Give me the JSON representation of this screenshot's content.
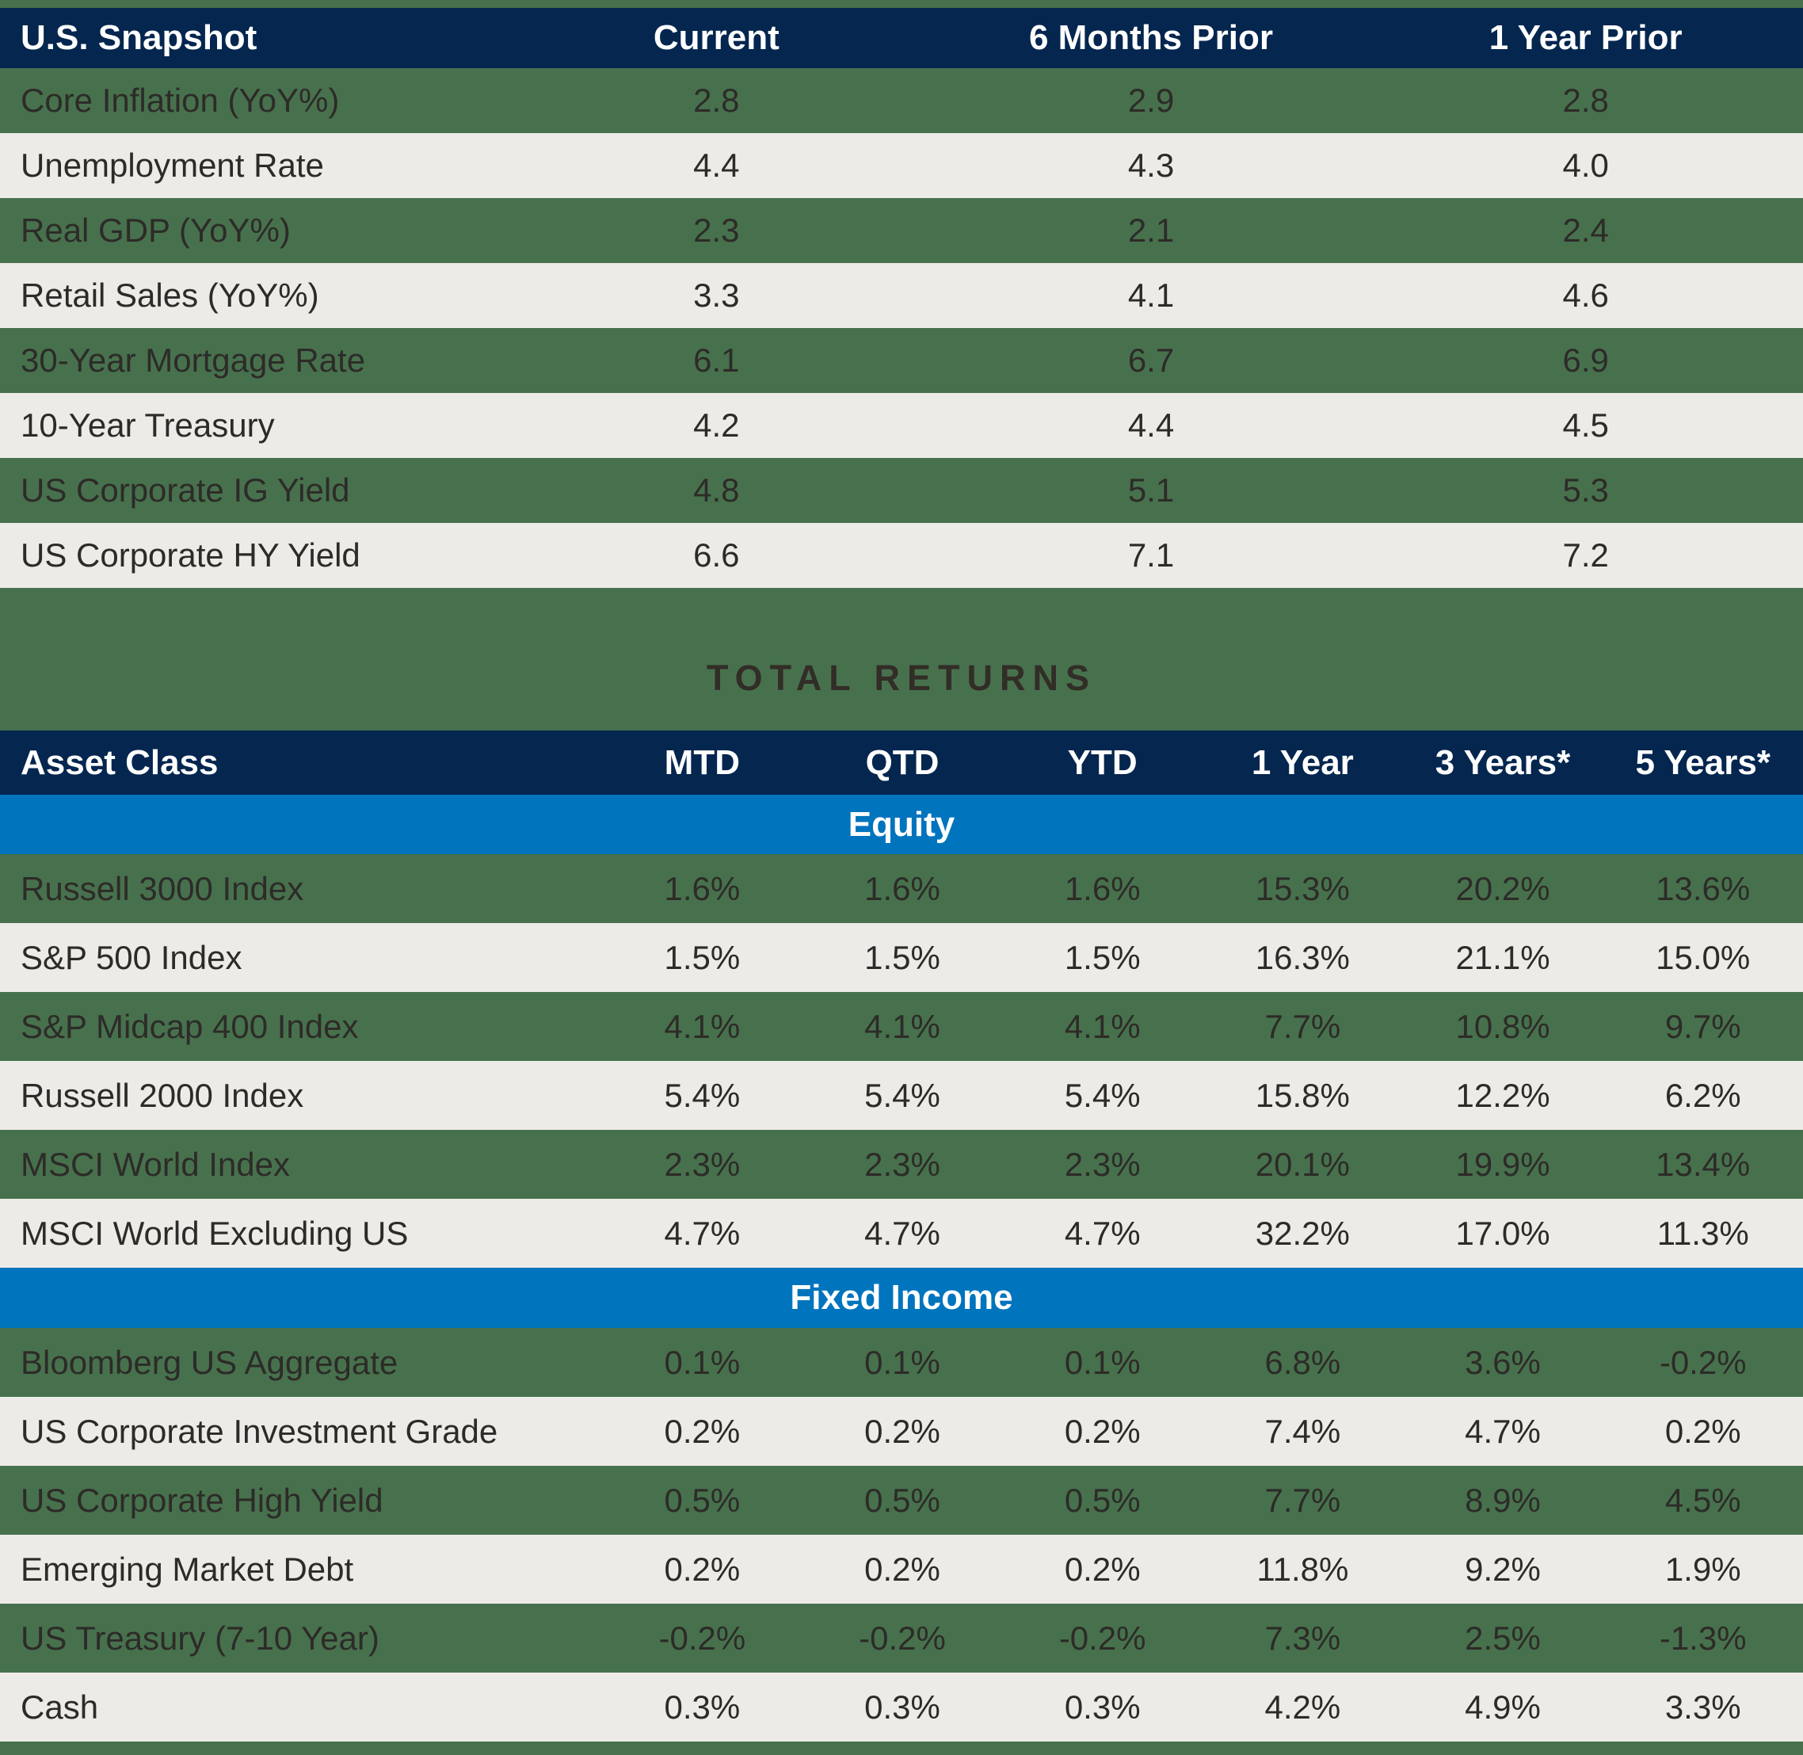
{
  "colors": {
    "navy": "#04264f",
    "green": "#47714d",
    "gray_row": "#edebe8",
    "blue_band": "#0074bd",
    "header_text": "#ffffff",
    "body_text": "#2d2b28",
    "title_text": "#322d27"
  },
  "snapshot": {
    "header": [
      "U.S. Snapshot",
      "Current",
      "6 Months Prior",
      "1 Year Prior"
    ],
    "rows": [
      {
        "label": "Core Inflation (YoY%)",
        "values": [
          "2.8",
          "2.9",
          "2.8"
        ]
      },
      {
        "label": "Unemployment Rate",
        "values": [
          "4.4",
          "4.3",
          "4.0"
        ]
      },
      {
        "label": "Real GDP (YoY%)",
        "values": [
          "2.3",
          "2.1",
          "2.4"
        ]
      },
      {
        "label": "Retail Sales (YoY%)",
        "values": [
          "3.3",
          "4.1",
          "4.6"
        ]
      },
      {
        "label": "30-Year Mortgage Rate",
        "values": [
          "6.1",
          "6.7",
          "6.9"
        ]
      },
      {
        "label": "10-Year Treasury",
        "values": [
          "4.2",
          "4.4",
          "4.5"
        ]
      },
      {
        "label": "US Corporate IG Yield",
        "values": [
          "4.8",
          "5.1",
          "5.3"
        ]
      },
      {
        "label": "US Corporate HY Yield",
        "values": [
          "6.6",
          "7.1",
          "7.2"
        ]
      }
    ]
  },
  "returns": {
    "title": "TOTAL RETURNS",
    "header": [
      "Asset Class",
      "MTD",
      "QTD",
      "YTD",
      "1 Year",
      "3 Years*",
      "5 Years*"
    ],
    "sections": [
      {
        "name": "Equity",
        "rows": [
          {
            "label": "Russell 3000 Index",
            "values": [
              "1.6%",
              "1.6%",
              "1.6%",
              "15.3%",
              "20.2%",
              "13.6%"
            ]
          },
          {
            "label": "S&P 500 Index",
            "values": [
              "1.5%",
              "1.5%",
              "1.5%",
              "16.3%",
              "21.1%",
              "15.0%"
            ]
          },
          {
            "label": "S&P Midcap 400 Index",
            "values": [
              "4.1%",
              "4.1%",
              "4.1%",
              "7.7%",
              "10.8%",
              "9.7%"
            ]
          },
          {
            "label": "Russell 2000 Index",
            "values": [
              "5.4%",
              "5.4%",
              "5.4%",
              "15.8%",
              "12.2%",
              "6.2%"
            ]
          },
          {
            "label": "MSCI World Index",
            "values": [
              "2.3%",
              "2.3%",
              "2.3%",
              "20.1%",
              "19.9%",
              "13.4%"
            ]
          },
          {
            "label": "MSCI World Excluding US",
            "values": [
              "4.7%",
              "4.7%",
              "4.7%",
              "32.2%",
              "17.0%",
              "11.3%"
            ]
          }
        ]
      },
      {
        "name": "Fixed Income",
        "rows": [
          {
            "label": "Bloomberg US Aggregate",
            "values": [
              "0.1%",
              "0.1%",
              "0.1%",
              "6.8%",
              "3.6%",
              "-0.2%"
            ]
          },
          {
            "label": "US Corporate Investment Grade",
            "values": [
              "0.2%",
              "0.2%",
              "0.2%",
              "7.4%",
              "4.7%",
              "0.2%"
            ]
          },
          {
            "label": "US Corporate High Yield",
            "values": [
              "0.5%",
              "0.5%",
              "0.5%",
              "7.7%",
              "8.9%",
              "4.5%"
            ]
          },
          {
            "label": "Emerging Market Debt",
            "values": [
              "0.2%",
              "0.2%",
              "0.2%",
              "11.8%",
              "9.2%",
              "1.9%"
            ]
          },
          {
            "label": "US Treasury (7-10 Year)",
            "values": [
              "-0.2%",
              "-0.2%",
              "-0.2%",
              "7.3%",
              "2.5%",
              "-1.3%"
            ]
          },
          {
            "label": "Cash",
            "values": [
              "0.3%",
              "0.3%",
              "0.3%",
              "4.2%",
              "4.9%",
              "3.3%"
            ]
          }
        ]
      }
    ]
  },
  "chart_data": [
    {
      "type": "table",
      "title": "U.S. Snapshot",
      "columns": [
        "U.S. Snapshot",
        "Current",
        "6 Months Prior",
        "1 Year Prior"
      ],
      "rows": [
        [
          "Core Inflation (YoY%)",
          2.8,
          2.9,
          2.8
        ],
        [
          "Unemployment Rate",
          4.4,
          4.3,
          4.0
        ],
        [
          "Real GDP (YoY%)",
          2.3,
          2.1,
          2.4
        ],
        [
          "Retail Sales (YoY%)",
          3.3,
          4.1,
          4.6
        ],
        [
          "30-Year Mortgage Rate",
          6.1,
          6.7,
          6.9
        ],
        [
          "10-Year Treasury",
          4.2,
          4.4,
          4.5
        ],
        [
          "US Corporate IG Yield",
          4.8,
          5.1,
          5.3
        ],
        [
          "US Corporate HY Yield",
          6.6,
          7.1,
          7.2
        ]
      ]
    },
    {
      "type": "table",
      "title": "TOTAL RETURNS",
      "columns": [
        "Asset Class",
        "MTD %",
        "QTD %",
        "YTD %",
        "1 Year %",
        "3 Years* %",
        "5 Years* %"
      ],
      "group_labels": [
        "Equity",
        "Fixed Income"
      ],
      "rows": [
        [
          "Russell 3000 Index",
          1.6,
          1.6,
          1.6,
          15.3,
          20.2,
          13.6
        ],
        [
          "S&P 500 Index",
          1.5,
          1.5,
          1.5,
          16.3,
          21.1,
          15.0
        ],
        [
          "S&P Midcap 400 Index",
          4.1,
          4.1,
          4.1,
          7.7,
          10.8,
          9.7
        ],
        [
          "Russell 2000 Index",
          5.4,
          5.4,
          5.4,
          15.8,
          12.2,
          6.2
        ],
        [
          "MSCI World Index",
          2.3,
          2.3,
          2.3,
          20.1,
          19.9,
          13.4
        ],
        [
          "MSCI World Excluding US",
          4.7,
          4.7,
          4.7,
          32.2,
          17.0,
          11.3
        ],
        [
          "Bloomberg US Aggregate",
          0.1,
          0.1,
          0.1,
          6.8,
          3.6,
          -0.2
        ],
        [
          "US Corporate Investment Grade",
          0.2,
          0.2,
          0.2,
          7.4,
          4.7,
          0.2
        ],
        [
          "US Corporate High Yield",
          0.5,
          0.5,
          0.5,
          7.7,
          8.9,
          4.5
        ],
        [
          "Emerging Market Debt",
          0.2,
          0.2,
          0.2,
          11.8,
          9.2,
          1.9
        ],
        [
          "US Treasury (7-10 Year)",
          -0.2,
          -0.2,
          -0.2,
          7.3,
          2.5,
          -1.3
        ],
        [
          "Cash",
          0.3,
          0.3,
          0.3,
          4.2,
          4.9,
          3.3
        ]
      ]
    }
  ]
}
